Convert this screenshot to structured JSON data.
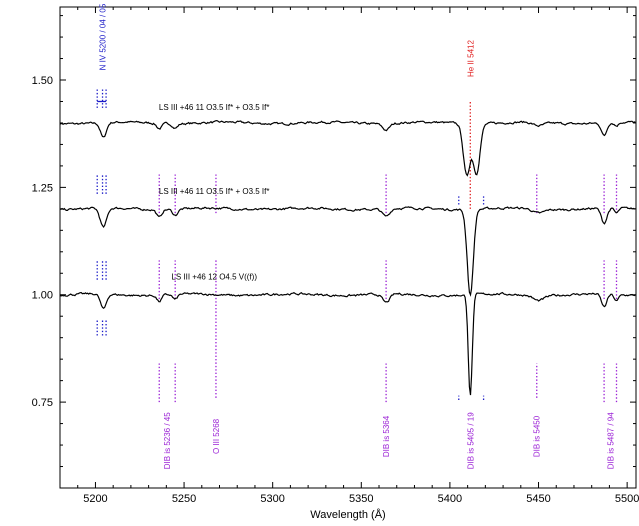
{
  "chart_data": {
    "type": "line",
    "xlabel": "Wavelength (Å)",
    "ylabel": "",
    "xlim": [
      5180,
      5505
    ],
    "ylim": [
      0.55,
      1.67
    ],
    "xticks": [
      5200,
      5250,
      5300,
      5350,
      5400,
      5450,
      5500
    ],
    "xtick_labels": [
      "5200",
      "5250",
      "5300",
      "5350",
      "5400",
      "5450",
      "5500"
    ],
    "yticks": [
      0.75,
      1.0,
      1.25,
      1.5
    ],
    "ytick_labels": [
      "0.75",
      "1.00",
      "1.25",
      "1.50"
    ],
    "grid": false,
    "series": [
      {
        "name": "LS III +46 11   O3.5 If* + O3.5 If*",
        "label_at": [
          5267,
          1.43
        ],
        "continuum": 1.4,
        "absorptions": [
          {
            "x": 5204.5,
            "depth": 0.035,
            "width": 1.6
          },
          {
            "x": 5236,
            "depth": 0.012,
            "width": 1.4
          },
          {
            "x": 5245,
            "depth": 0.01,
            "width": 1.4
          },
          {
            "x": 5364,
            "depth": 0.015,
            "width": 2.0
          },
          {
            "x": 5409.5,
            "depth": 0.12,
            "width": 1.9
          },
          {
            "x": 5415,
            "depth": 0.115,
            "width": 1.9
          },
          {
            "x": 5450,
            "depth": 0.008,
            "width": 3
          },
          {
            "x": 5487,
            "depth": 0.03,
            "width": 1.5
          },
          {
            "x": 5494,
            "depth": 0.008,
            "width": 1.2
          }
        ]
      },
      {
        "name": "LS III +46 11   O3.5 If* + O3.5 If*",
        "label_at": [
          5267,
          1.235
        ],
        "continuum": 1.2,
        "absorptions": [
          {
            "x": 5204.5,
            "depth": 0.045,
            "width": 1.8
          },
          {
            "x": 5236,
            "depth": 0.018,
            "width": 1.4
          },
          {
            "x": 5245,
            "depth": 0.014,
            "width": 1.4
          },
          {
            "x": 5364,
            "depth": 0.018,
            "width": 2.0
          },
          {
            "x": 5411.5,
            "depth": 0.2,
            "width": 1.7
          },
          {
            "x": 5450,
            "depth": 0.01,
            "width": 3
          },
          {
            "x": 5487,
            "depth": 0.035,
            "width": 1.6
          },
          {
            "x": 5494,
            "depth": 0.012,
            "width": 1.2
          }
        ]
      },
      {
        "name": "LS III +46 12   O4.5 V((f))",
        "label_at": [
          5267,
          1.035
        ],
        "continuum": 1.0,
        "absorptions": [
          {
            "x": 5204.5,
            "depth": 0.035,
            "width": 1.6
          },
          {
            "x": 5236,
            "depth": 0.015,
            "width": 1.3
          },
          {
            "x": 5245,
            "depth": 0.012,
            "width": 1.3
          },
          {
            "x": 5364,
            "depth": 0.02,
            "width": 2.0
          },
          {
            "x": 5411.5,
            "depth": 0.235,
            "width": 1.1
          },
          {
            "x": 5450,
            "depth": 0.012,
            "width": 3
          },
          {
            "x": 5487,
            "depth": 0.03,
            "width": 1.5
          },
          {
            "x": 5494,
            "depth": 0.015,
            "width": 1.2
          }
        ]
      }
    ],
    "marker_groups": [
      {
        "y_ranges": [
          [
            1.435,
            1.48
          ],
          [
            1.235,
            1.28
          ],
          [
            1.035,
            1.08
          ],
          [
            0.905,
            0.94
          ]
        ],
        "xs": [
          5201,
          5204,
          5206
        ],
        "color": "#1c1cc8"
      },
      {
        "y_ranges": [
          [
            1.19,
            1.28
          ],
          [
            0.99,
            1.08
          ],
          [
            0.75,
            0.84
          ]
        ],
        "xs": [
          5236,
          5245,
          5364,
          5487,
          5494
        ],
        "color": "#9b22d6"
      },
      {
        "y_ranges": [
          [
            1.19,
            1.28
          ],
          [
            0.76,
            1.08
          ]
        ],
        "xs": [
          5268
        ],
        "color": "#9b22d6"
      },
      {
        "y_ranges": [
          [
            1.19,
            1.28
          ],
          [
            0.76,
            0.84
          ]
        ],
        "xs": [
          5449
        ],
        "color": "#9b22d6"
      },
      {
        "y_ranges": [
          [
            1.21,
            1.23
          ],
          [
            0.755,
            0.765
          ]
        ],
        "xs": [
          5405,
          5419
        ],
        "color": "#1c1cc8"
      },
      {
        "y_ranges": [
          [
            1.2,
            1.45
          ]
        ],
        "xs": [
          5411.5
        ],
        "color": "#e02020"
      }
    ],
    "annotations": [
      {
        "text": "N IV 5200 / 04 / 05",
        "x": 5204,
        "y": 1.6,
        "color": "#1c1cc8"
      },
      {
        "text": "He II 5412",
        "x": 5411.5,
        "y": 1.55,
        "color": "#e02020"
      },
      {
        "text": "DIB is 5236 / 45",
        "x": 5240.5,
        "y": 0.66,
        "color": "#9b22d6"
      },
      {
        "text": "O III 5268",
        "x": 5268,
        "y": 0.67,
        "color": "#9b22d6"
      },
      {
        "text": "DIB is 5364",
        "x": 5364,
        "y": 0.67,
        "color": "#9b22d6"
      },
      {
        "text": "DIB is 5405 / 19",
        "x": 5411.5,
        "y": 0.66,
        "color": "#9b22d6"
      },
      {
        "text": "DIB is 5450",
        "x": 5449,
        "y": 0.67,
        "color": "#9b22d6"
      },
      {
        "text": "DIB is 5487 / 94",
        "x": 5490.5,
        "y": 0.66,
        "color": "#9b22d6"
      }
    ]
  }
}
